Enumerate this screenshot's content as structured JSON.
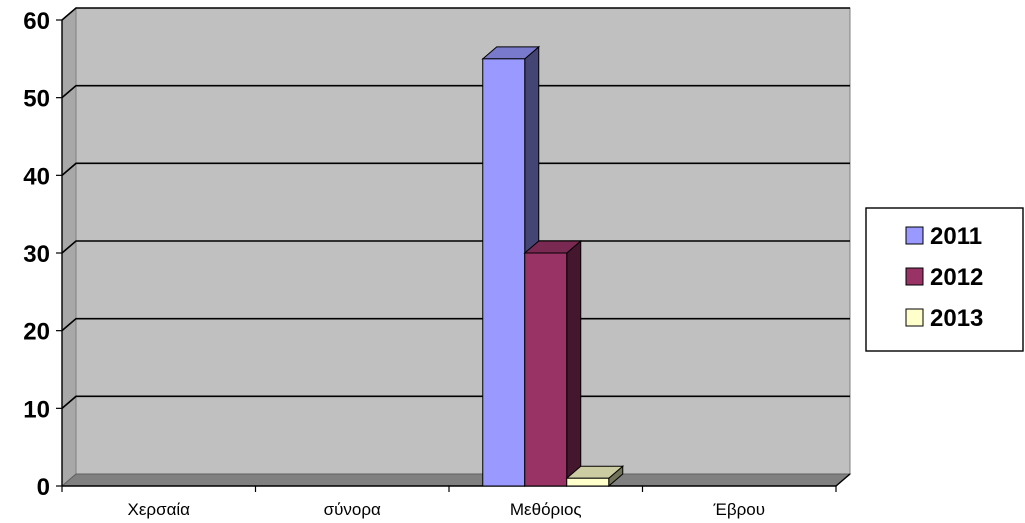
{
  "chart_data": {
    "type": "bar",
    "categories": [
      "Χερσαία",
      "σύνορα",
      "Μεθόριος",
      "Έβρου"
    ],
    "series": [
      {
        "name": "2011",
        "values": [
          0,
          0,
          55,
          0
        ],
        "color": "#9999ff"
      },
      {
        "name": "2012",
        "values": [
          0,
          0,
          30,
          0
        ],
        "color": "#993366"
      },
      {
        "name": "2013",
        "values": [
          0,
          0,
          1,
          0
        ],
        "color": "#ffffcc"
      }
    ],
    "yticks": [
      "0",
      "10",
      "20",
      "30",
      "40",
      "50",
      "60"
    ],
    "ylim": [
      0,
      60
    ],
    "grid": true,
    "legend": "right",
    "plot_background": "#c0c0c0"
  }
}
